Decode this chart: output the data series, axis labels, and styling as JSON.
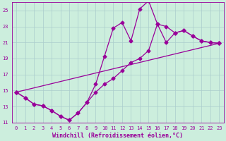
{
  "xlabel": "Windchill (Refroidissement éolien,°C)",
  "bg_color": "#cceedd",
  "line_color": "#990099",
  "grid_color": "#aacccc",
  "xlim": [
    -0.5,
    23.5
  ],
  "ylim": [
    11,
    26
  ],
  "yticks": [
    11,
    13,
    15,
    17,
    19,
    21,
    23,
    25
  ],
  "xticks": [
    0,
    1,
    2,
    3,
    4,
    5,
    6,
    7,
    8,
    9,
    10,
    11,
    12,
    13,
    14,
    15,
    16,
    17,
    18,
    19,
    20,
    21,
    22,
    23
  ],
  "line1_x": [
    0,
    1,
    2,
    3,
    4,
    5,
    6,
    7,
    8,
    9,
    10,
    11,
    12,
    13,
    14,
    15,
    16,
    17,
    18,
    19,
    20,
    21,
    22,
    23
  ],
  "line1_y": [
    14.8,
    14.1,
    13.3,
    13.1,
    12.5,
    11.8,
    11.3,
    12.2,
    13.5,
    15.8,
    19.3,
    22.8,
    23.5,
    21.2,
    25.2,
    26.2,
    23.3,
    21.0,
    22.2,
    22.5,
    21.8,
    21.2,
    21.0,
    20.9
  ],
  "line2_x": [
    0,
    1,
    2,
    3,
    4,
    5,
    6,
    7,
    8,
    9,
    10,
    11,
    12,
    13,
    14,
    15,
    16,
    17,
    18,
    19,
    20,
    21,
    22,
    23
  ],
  "line2_y": [
    14.8,
    14.1,
    13.3,
    13.1,
    12.5,
    11.8,
    11.3,
    12.2,
    13.5,
    14.8,
    15.8,
    16.5,
    17.5,
    18.5,
    19.0,
    20.0,
    23.3,
    23.0,
    22.2,
    22.5,
    21.8,
    21.2,
    21.0,
    20.9
  ],
  "line3_x": [
    0,
    23
  ],
  "line3_y": [
    14.8,
    20.9
  ],
  "marker": "D",
  "marker_size": 2.5,
  "linewidth": 0.9,
  "tick_fontsize": 5.0,
  "label_fontsize": 6.0
}
